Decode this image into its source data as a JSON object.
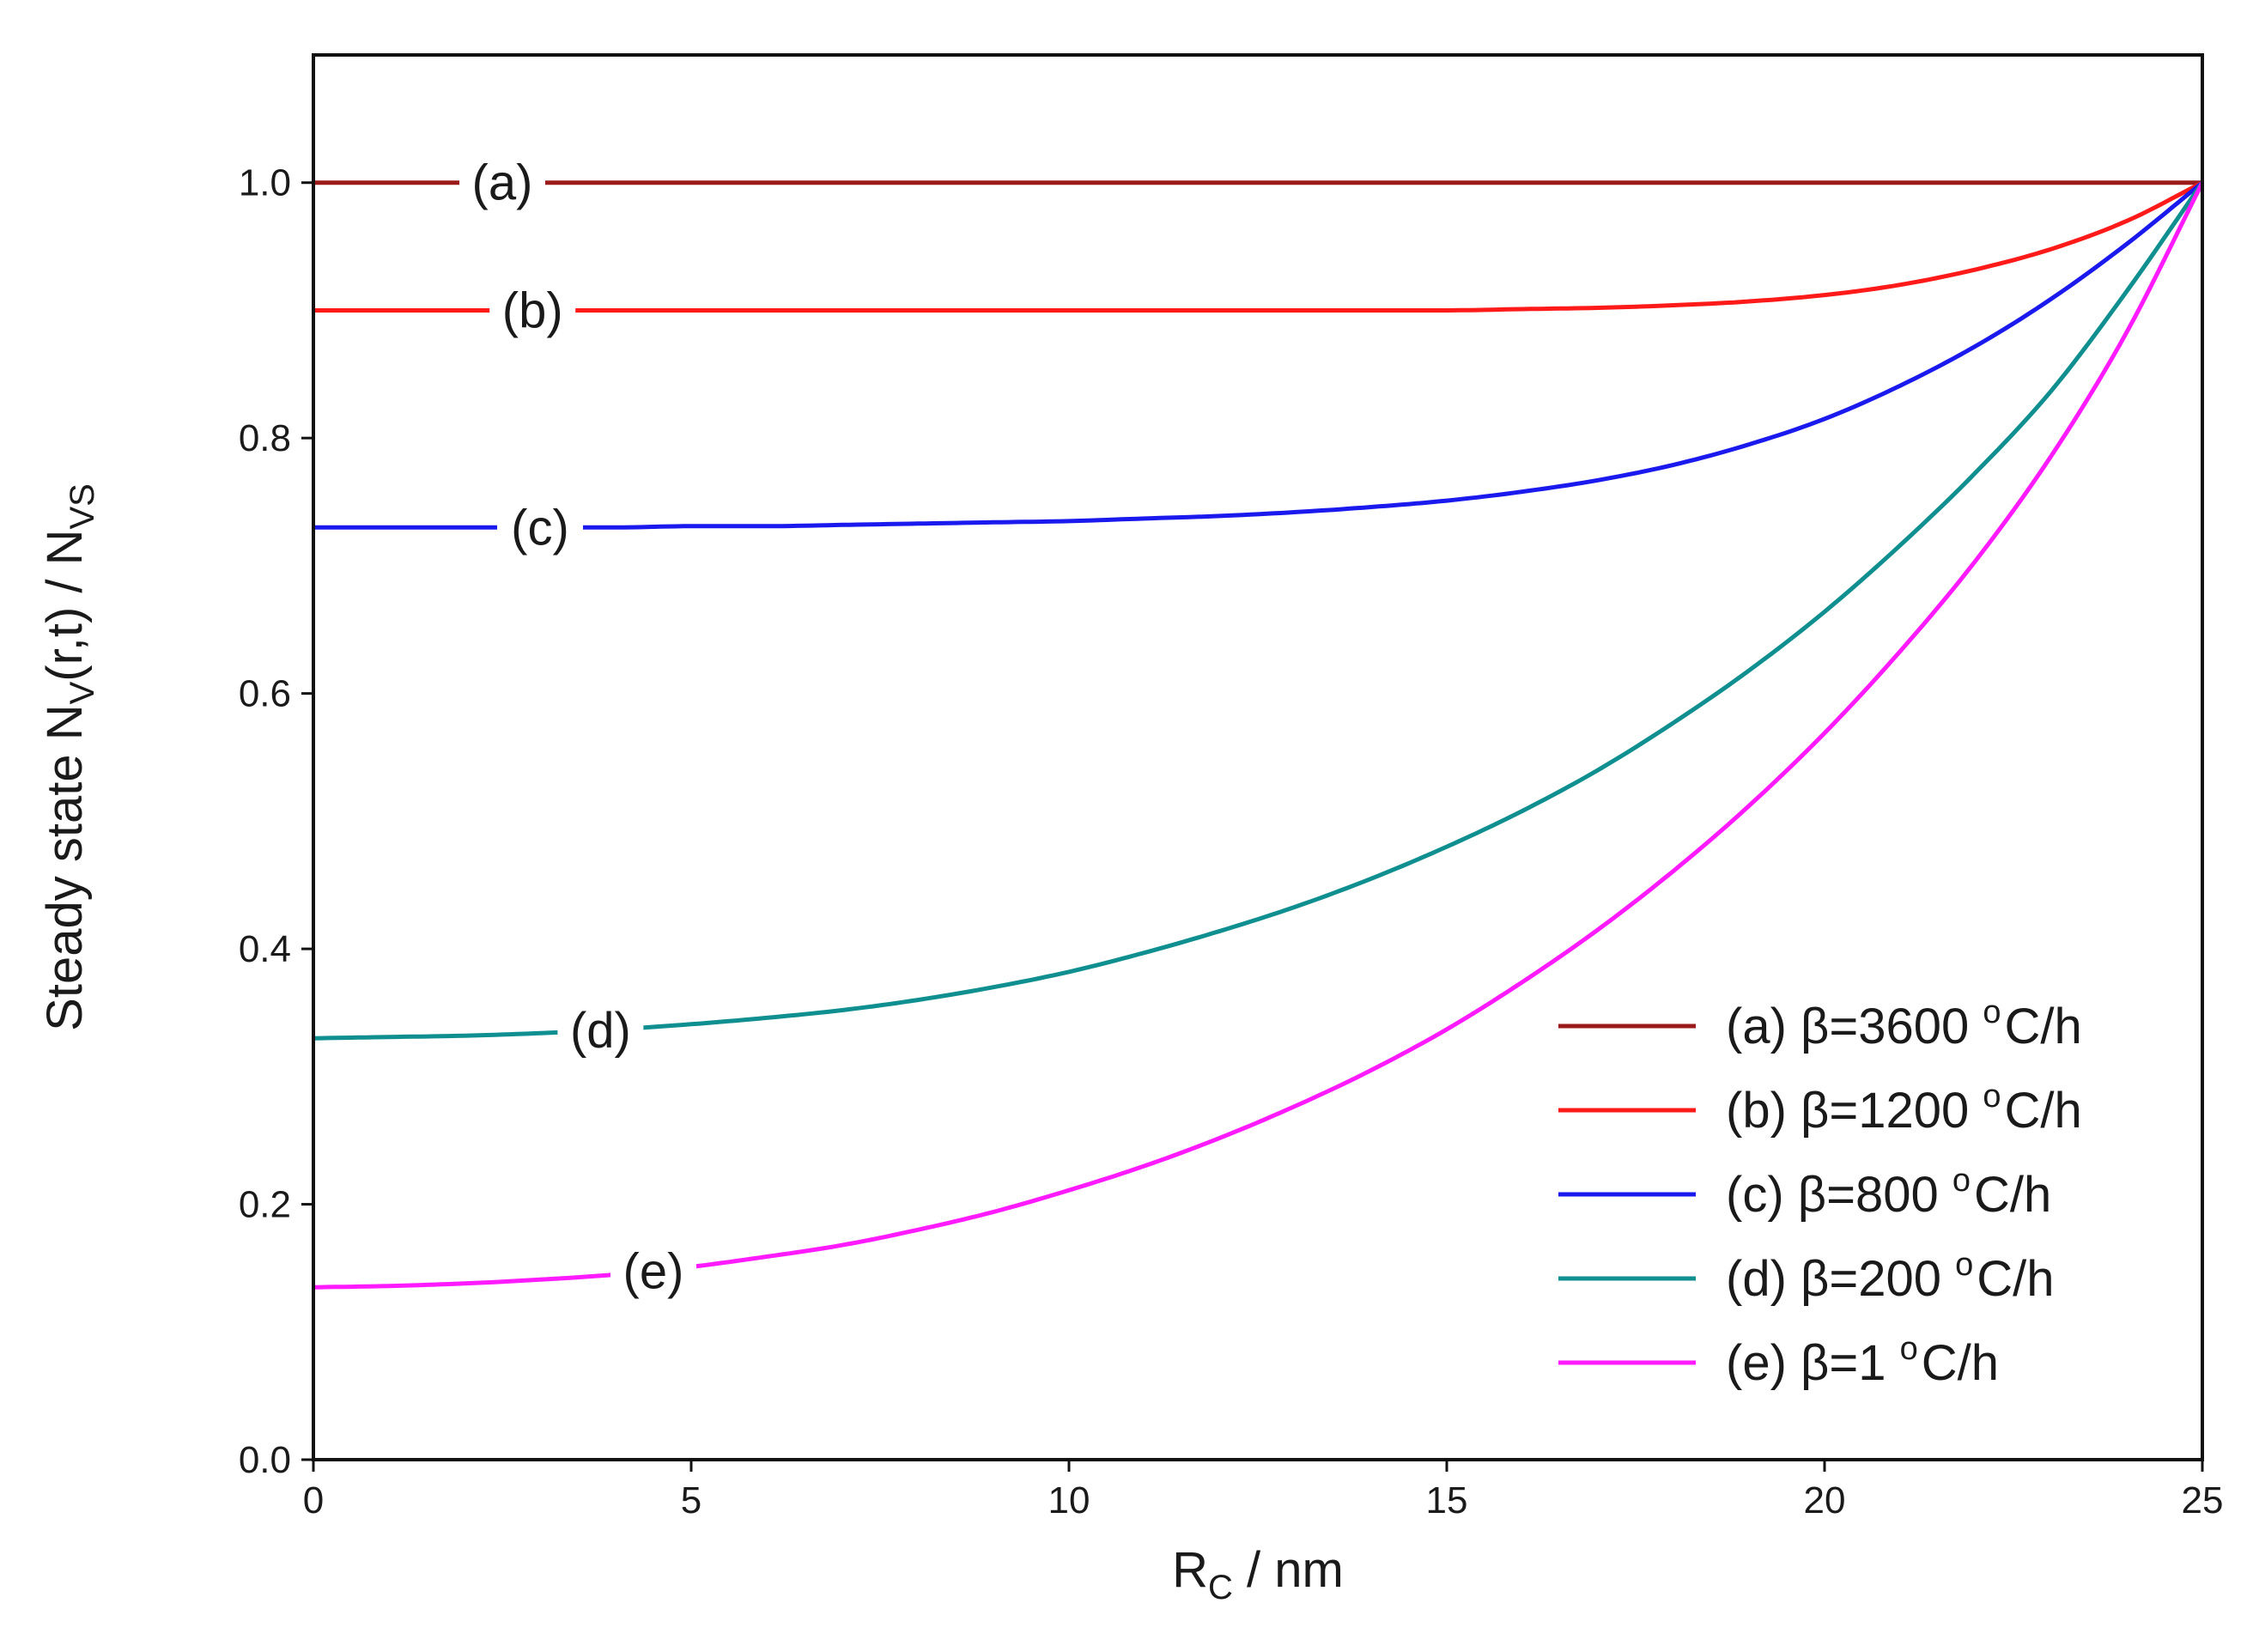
{
  "chart_data": {
    "type": "line",
    "title": "",
    "xlabel": {
      "main": "R",
      "sub": "C",
      "rest": " / nm"
    },
    "ylabel": {
      "p1": "Steady state N",
      "sub1": "V",
      "p2": "(r,t) / N",
      "sub2": "VS"
    },
    "xlim": [
      0,
      25
    ],
    "ylim": [
      0,
      1.1
    ],
    "xticks": [
      0,
      5,
      10,
      15,
      20,
      25
    ],
    "xtick_labels": [
      "0",
      "5",
      "10",
      "15",
      "20",
      "25"
    ],
    "yticks": [
      0.0,
      0.2,
      0.4,
      0.6,
      0.8,
      1.0
    ],
    "ytick_labels": [
      "0.0",
      "0.2",
      "0.4",
      "0.6",
      "0.8",
      "1.0"
    ],
    "grid": false,
    "legend_position": "bottom-right",
    "x": [
      0,
      1,
      2,
      3,
      4,
      5,
      6,
      7,
      8,
      9,
      10,
      11,
      12,
      13,
      14,
      15,
      16,
      17,
      18,
      19,
      20,
      21,
      22,
      23,
      24,
      25
    ],
    "series": [
      {
        "name": "(a) β=3600 °C/h",
        "legend": {
          "pre": "(a) β=3600 ",
          "sup": "o",
          "post": "C/h"
        },
        "tag": "(a)",
        "tag_x": 2.5,
        "color": "#9b1a1a",
        "values": [
          1.0,
          1.0,
          1.0,
          1.0,
          1.0,
          1.0,
          1.0,
          1.0,
          1.0,
          1.0,
          1.0,
          1.0,
          1.0,
          1.0,
          1.0,
          1.0,
          1.0,
          1.0,
          1.0,
          1.0,
          1.0,
          1.0,
          1.0,
          1.0,
          1.0,
          1.0
        ]
      },
      {
        "name": "(b) β=1200 °C/h",
        "legend": {
          "pre": "(b) β=1200 ",
          "sup": "o",
          "post": "C/h"
        },
        "tag": "(b)",
        "tag_x": 2.9,
        "color": "#ff1a1a",
        "values": [
          0.9,
          0.9,
          0.9,
          0.9,
          0.9,
          0.9,
          0.9,
          0.9,
          0.9,
          0.9,
          0.9,
          0.9,
          0.9,
          0.9,
          0.9,
          0.9,
          0.901,
          0.902,
          0.904,
          0.907,
          0.912,
          0.92,
          0.932,
          0.948,
          0.97,
          1.0
        ]
      },
      {
        "name": "(c) β=800 °C/h",
        "legend": {
          "pre": "(c) β=800 ",
          "sup": "o",
          "post": "C/h"
        },
        "tag": "(c)",
        "tag_x": 3.0,
        "color": "#1a1aee",
        "values": [
          0.73,
          0.73,
          0.73,
          0.73,
          0.73,
          0.731,
          0.731,
          0.732,
          0.733,
          0.734,
          0.735,
          0.737,
          0.739,
          0.742,
          0.746,
          0.751,
          0.758,
          0.767,
          0.779,
          0.795,
          0.815,
          0.841,
          0.872,
          0.909,
          0.952,
          1.0
        ]
      },
      {
        "name": "(d) β=200 °C/h",
        "legend": {
          "pre": "(d) β=200 ",
          "sup": "o",
          "post": "C/h"
        },
        "tag": "(d)",
        "tag_x": 3.8,
        "color": "#0f8f8f",
        "values": [
          0.33,
          0.331,
          0.332,
          0.334,
          0.337,
          0.341,
          0.346,
          0.352,
          0.36,
          0.37,
          0.382,
          0.397,
          0.414,
          0.433,
          0.455,
          0.48,
          0.508,
          0.54,
          0.577,
          0.618,
          0.664,
          0.716,
          0.773,
          0.837,
          0.915,
          1.0
        ]
      },
      {
        "name": "(e) β=1 °C/h",
        "legend": {
          "pre": "(e) β=1 ",
          "sup": "o",
          "post": "C/h"
        },
        "tag": "(e)",
        "tag_x": 4.5,
        "color": "#ff1aff",
        "values": [
          0.135,
          0.136,
          0.138,
          0.141,
          0.145,
          0.151,
          0.159,
          0.168,
          0.18,
          0.194,
          0.211,
          0.23,
          0.252,
          0.277,
          0.305,
          0.337,
          0.374,
          0.415,
          0.461,
          0.512,
          0.569,
          0.633,
          0.704,
          0.786,
          0.883,
          1.0
        ]
      }
    ]
  }
}
